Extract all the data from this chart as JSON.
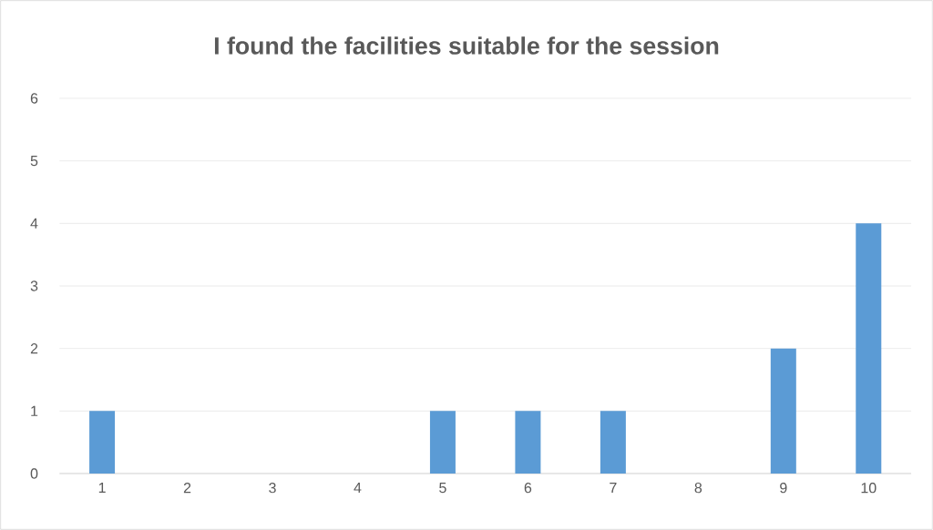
{
  "chart_data": {
    "type": "bar",
    "title": "I found the facilities suitable for the session",
    "categories": [
      "1",
      "2",
      "3",
      "4",
      "5",
      "6",
      "7",
      "8",
      "9",
      "10"
    ],
    "values": [
      1,
      0,
      0,
      0,
      1,
      1,
      1,
      0,
      2,
      4
    ],
    "color": "#5b9bd5",
    "ylim": [
      0,
      6
    ],
    "yticks": [
      0,
      1,
      2,
      3,
      4,
      5,
      6
    ],
    "grid": "y"
  }
}
